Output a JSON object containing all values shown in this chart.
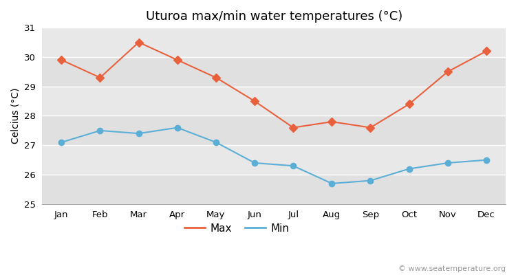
{
  "title": "Uturoa max/min water temperatures (°C)",
  "ylabel": "Celcius (°C)",
  "months": [
    "Jan",
    "Feb",
    "Mar",
    "Apr",
    "May",
    "Jun",
    "Jul",
    "Aug",
    "Sep",
    "Oct",
    "Nov",
    "Dec"
  ],
  "max_temps": [
    29.9,
    29.3,
    30.5,
    29.9,
    29.3,
    28.5,
    27.6,
    27.8,
    27.6,
    28.4,
    29.5,
    30.2
  ],
  "min_temps": [
    27.1,
    27.5,
    27.4,
    27.6,
    27.1,
    26.4,
    26.3,
    25.7,
    25.8,
    26.2,
    26.4,
    26.5
  ],
  "max_color": "#e8613c",
  "min_color": "#5bafd6",
  "ylim": [
    25,
    31
  ],
  "yticks": [
    25,
    26,
    27,
    28,
    29,
    30,
    31
  ],
  "fig_bg_color": "#ffffff",
  "plot_bg_color": "#e8e8e8",
  "band_colors": [
    "#e0e0e0",
    "#e8e8e8"
  ],
  "grid_color": "#ffffff",
  "watermark": "© www.seatemperature.org",
  "title_fontsize": 13,
  "label_fontsize": 10,
  "tick_fontsize": 9.5,
  "watermark_fontsize": 8
}
